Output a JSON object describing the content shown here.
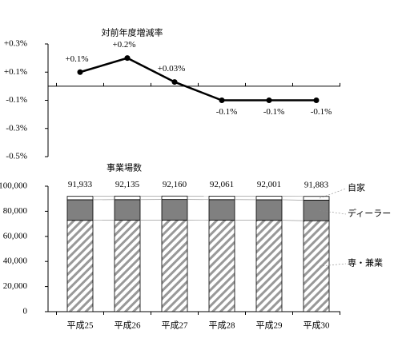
{
  "chart_data": [
    {
      "type": "line",
      "title": "対前年度増減率",
      "color": "#000000",
      "values": [
        0.1,
        0.2,
        0.03,
        -0.1,
        -0.1,
        -0.1
      ],
      "value_labels": [
        "+0.1%",
        "+0.2%",
        "+0.03%",
        "-0.1%",
        "-0.1%",
        "-0.1%"
      ],
      "ylim": [
        -0.5,
        0.3
      ],
      "yticks": [
        {
          "value": 0.3,
          "label": "+0.3%"
        },
        {
          "value": 0.1,
          "label": "+0.1%"
        },
        {
          "value": -0.1,
          "label": "-0.1%"
        },
        {
          "value": -0.3,
          "label": "-0.3%"
        },
        {
          "value": -0.5,
          "label": "-0.5%"
        }
      ]
    },
    {
      "type": "stacked-bar",
      "title": "事業場数",
      "categories": [
        "平成25",
        "平成26",
        "平成27",
        "平成28",
        "平成29",
        "平成30"
      ],
      "series": [
        {
          "name": "専・兼業",
          "color": "hatch",
          "values": [
            72800,
            72900,
            73000,
            72900,
            72800,
            72500
          ]
        },
        {
          "name": "ディーラー",
          "color": "#808080",
          "values": [
            16400,
            16400,
            16400,
            16400,
            16400,
            16400
          ]
        },
        {
          "name": "自家",
          "color": "#ffffff",
          "values": [
            2733,
            2835,
            2760,
            2761,
            2801,
            2983
          ]
        }
      ],
      "totals": {
        "values": [
          91933,
          92135,
          92160,
          92061,
          92001,
          91883
        ],
        "value_labels": [
          "91,933",
          "92,135",
          "92,160",
          "92,061",
          "92,001",
          "91,883"
        ]
      },
      "ylim": [
        0,
        100000
      ],
      "yticks": [
        0,
        {
          "value": 20000,
          "label": "20,000"
        },
        {
          "value": 40000,
          "label": "40,000"
        },
        {
          "value": 60000,
          "label": "60,000"
        },
        {
          "value": 80000,
          "label": "80,000"
        },
        {
          "value": 100000,
          "label": "100,000"
        }
      ]
    }
  ]
}
